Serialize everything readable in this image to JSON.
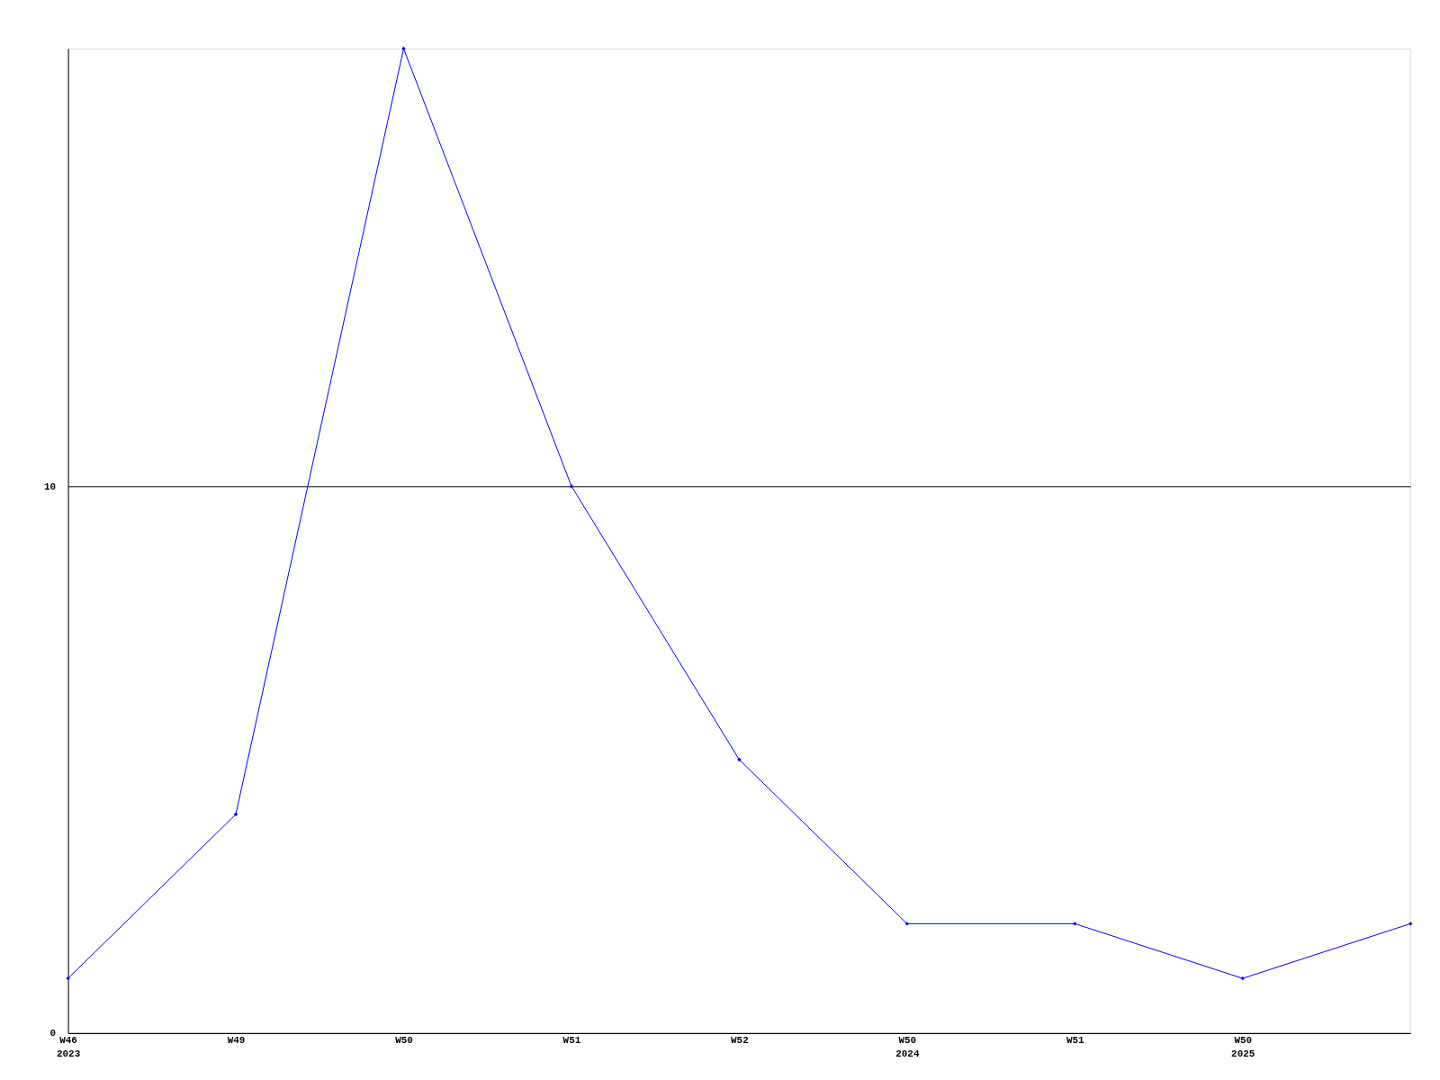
{
  "chart_data": {
    "type": "line",
    "categories": [
      "W46\n2023",
      "W49",
      "W50",
      "W51",
      "W52",
      "W50\n2024",
      "W51",
      "W50\n2025",
      null
    ],
    "series": [
      {
        "color": "#0000ff",
        "values": [
          1,
          4,
          18,
          10,
          5,
          2,
          2,
          1,
          2
        ]
      }
    ],
    "ylim": [
      0,
      18
    ],
    "yticks": [
      0,
      10
    ],
    "grid": "y",
    "marker": "diamond",
    "line_style": "solid"
  }
}
